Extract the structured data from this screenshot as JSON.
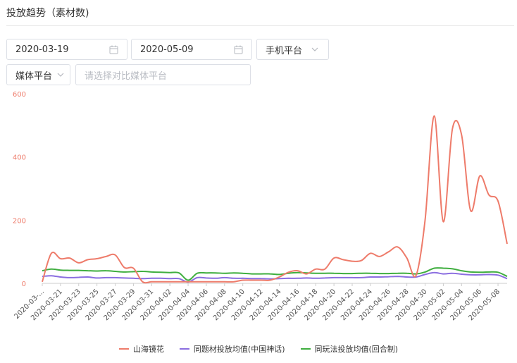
{
  "header": {
    "title": "投放趋势（素材数)"
  },
  "filters": {
    "start_date": "2020-03-19",
    "end_date": "2020-05-09",
    "platform": "手机平台",
    "media_platform": "媒体平台",
    "compare_placeholder": "请选择对比媒体平台"
  },
  "icons": {
    "calendar": "calendar-icon",
    "chevron": "chevron-down-icon"
  },
  "chart_data": {
    "type": "line",
    "ylim": [
      0,
      600
    ],
    "yticks": [
      0,
      200,
      400,
      600
    ],
    "x_tick_labels": [
      "2020-03-...",
      "2020-03-21",
      "2020-03-23",
      "2020-03-25",
      "2020-03-27",
      "2020-03-29",
      "2020-03-31",
      "2020-04-02",
      "2020-04-04",
      "2020-04-06",
      "2020-04-08",
      "2020-04-10",
      "2020-04-12",
      "2020-04-14",
      "2020-04-16",
      "2020-04-18",
      "2020-04-20",
      "2020-04-22",
      "2020-04-24",
      "2020-04-26",
      "2020-04-28",
      "2020-04-30",
      "2020-05-02",
      "2020-05-04",
      "2020-05-06",
      "2020-05-08"
    ],
    "x": [
      "2020-03-19",
      "2020-03-20",
      "2020-03-21",
      "2020-03-22",
      "2020-03-23",
      "2020-03-24",
      "2020-03-25",
      "2020-03-26",
      "2020-03-27",
      "2020-03-28",
      "2020-03-29",
      "2020-03-30",
      "2020-03-31",
      "2020-04-01",
      "2020-04-02",
      "2020-04-03",
      "2020-04-04",
      "2020-04-05",
      "2020-04-06",
      "2020-04-07",
      "2020-04-08",
      "2020-04-09",
      "2020-04-10",
      "2020-04-11",
      "2020-04-12",
      "2020-04-13",
      "2020-04-14",
      "2020-04-15",
      "2020-04-16",
      "2020-04-17",
      "2020-04-18",
      "2020-04-19",
      "2020-04-20",
      "2020-04-21",
      "2020-04-22",
      "2020-04-23",
      "2020-04-24",
      "2020-04-25",
      "2020-04-26",
      "2020-04-27",
      "2020-04-28",
      "2020-04-29",
      "2020-04-30",
      "2020-05-01",
      "2020-05-02",
      "2020-05-03",
      "2020-05-04",
      "2020-05-05",
      "2020-05-06",
      "2020-05-07",
      "2020-05-08",
      "2020-05-09"
    ],
    "series": [
      {
        "name": "山海镜花",
        "color": "#ee7b6a",
        "values": [
          5,
          95,
          78,
          80,
          65,
          75,
          78,
          85,
          90,
          50,
          48,
          5,
          5,
          5,
          5,
          5,
          5,
          5,
          5,
          5,
          5,
          5,
          10,
          10,
          10,
          10,
          20,
          35,
          40,
          30,
          45,
          45,
          80,
          75,
          70,
          72,
          95,
          85,
          100,
          115,
          80,
          25,
          200,
          530,
          195,
          490,
          470,
          230,
          340,
          280,
          260,
          125
        ]
      },
      {
        "name": "同题材投放均值(中国神话)",
        "color": "#8b6ee0",
        "values": [
          22,
          24,
          20,
          18,
          19,
          20,
          17,
          18,
          18,
          17,
          16,
          15,
          16,
          16,
          15,
          15,
          4,
          18,
          17,
          16,
          18,
          16,
          16,
          15,
          15,
          14,
          15,
          16,
          16,
          17,
          16,
          17,
          18,
          18,
          18,
          18,
          20,
          20,
          21,
          22,
          20,
          20,
          28,
          34,
          30,
          32,
          29,
          27,
          27,
          28,
          26,
          15
        ]
      },
      {
        "name": "同玩法投放均值(回合制)",
        "color": "#3fae3f",
        "values": [
          40,
          45,
          42,
          41,
          41,
          40,
          39,
          40,
          38,
          36,
          37,
          38,
          36,
          35,
          34,
          33,
          10,
          32,
          33,
          33,
          32,
          33,
          32,
          30,
          30,
          30,
          28,
          32,
          34,
          33,
          32,
          32,
          32,
          31,
          31,
          32,
          32,
          31,
          31,
          32,
          32,
          30,
          36,
          48,
          48,
          46,
          40,
          36,
          35,
          36,
          35,
          22
        ]
      }
    ]
  }
}
